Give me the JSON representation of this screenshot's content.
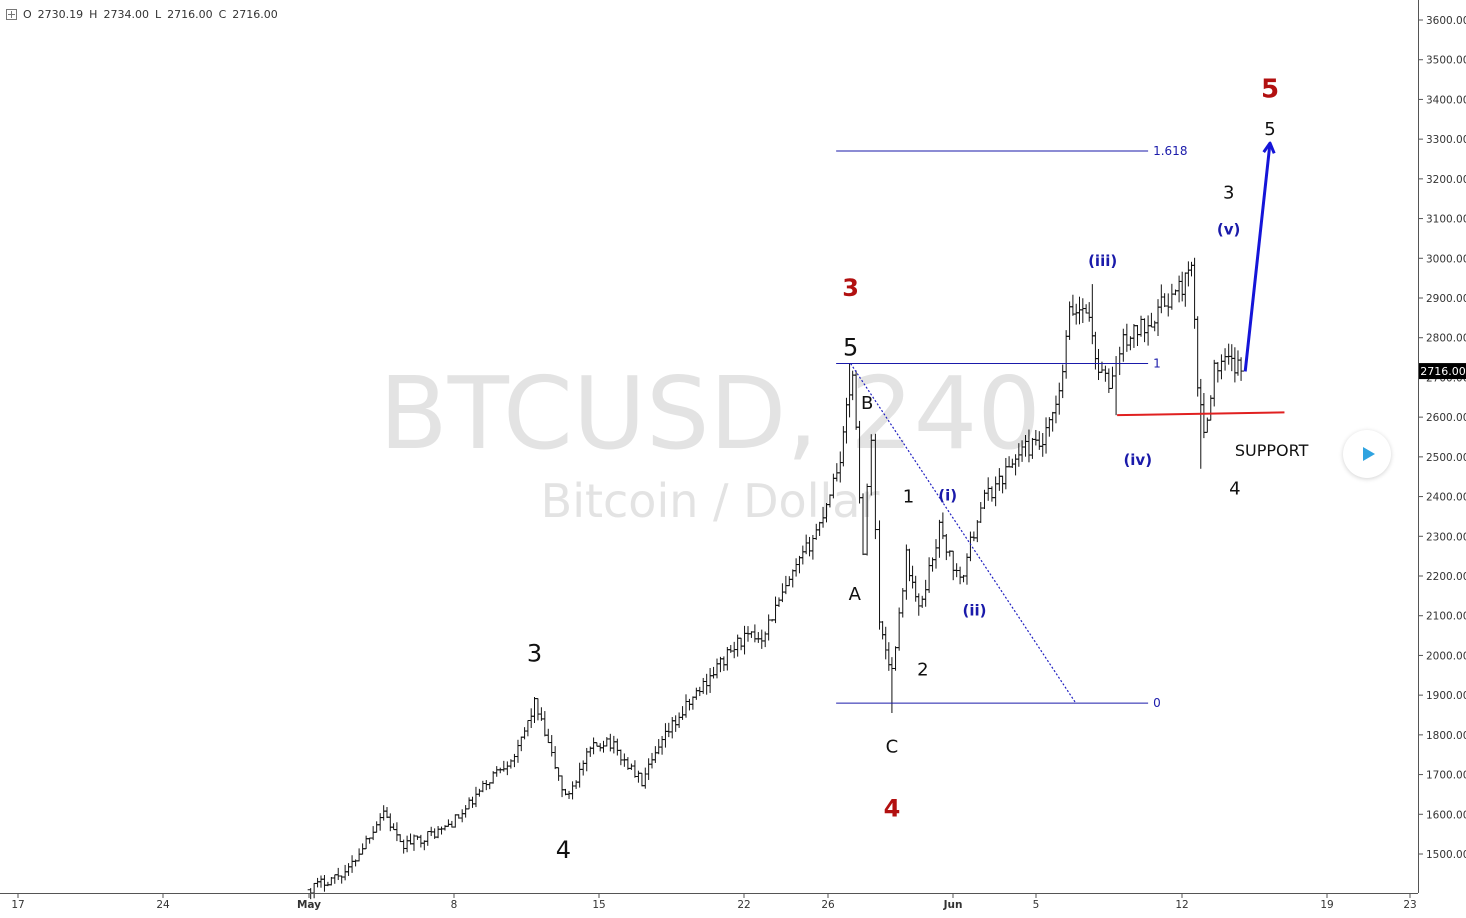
{
  "header": {
    "ohlc": {
      "o_label": "O",
      "o": "2730.19",
      "h_label": "H",
      "h": "2734.00",
      "l_label": "L",
      "l": "2716.00",
      "c_label": "C",
      "c": "2716.00"
    }
  },
  "watermark": {
    "symbol": "BTCUSD, 240",
    "description": "Bitcoin / Dollar"
  },
  "price_axis": {
    "ticks": [
      "3600.00",
      "3500.00",
      "3400.00",
      "3300.00",
      "3200.00",
      "3100.00",
      "3000.00",
      "2900.00",
      "2800.00",
      "2700.00",
      "2600.00",
      "2500.00",
      "2400.00",
      "2300.00",
      "2200.00",
      "2100.00",
      "2000.00",
      "1900.00",
      "1800.00",
      "1700.00",
      "1600.00",
      "1500.00"
    ],
    "last_price_label": "2716.00"
  },
  "time_axis": {
    "labels": [
      "17",
      "24",
      "May",
      "8",
      "15",
      "22",
      "26",
      "Jun",
      "5",
      "12",
      "19",
      "23"
    ]
  },
  "chart_data": {
    "type": "ohlc",
    "symbol": "BTCUSD",
    "interval": "240",
    "ylim": [
      1400,
      3650
    ],
    "x_unit": "days from Apr 17",
    "last_price": 2716,
    "anchors": [
      {
        "x": 14.0,
        "y": 1410
      },
      {
        "x": 16.0,
        "y": 1460
      },
      {
        "x": 17.7,
        "y": 1610
      },
      {
        "x": 18.5,
        "y": 1520
      },
      {
        "x": 20.5,
        "y": 1560
      },
      {
        "x": 21.5,
        "y": 1600
      },
      {
        "x": 23.0,
        "y": 1700
      },
      {
        "x": 24.2,
        "y": 1760
      },
      {
        "x": 25.0,
        "y": 1880
      },
      {
        "x": 26.5,
        "y": 1640
      },
      {
        "x": 27.7,
        "y": 1760
      },
      {
        "x": 28.5,
        "y": 1790
      },
      {
        "x": 30.2,
        "y": 1680
      },
      {
        "x": 31.5,
        "y": 1810
      },
      {
        "x": 33.5,
        "y": 1950
      },
      {
        "x": 35.0,
        "y": 2040
      },
      {
        "x": 36.0,
        "y": 2050
      },
      {
        "x": 37.5,
        "y": 2200
      },
      {
        "x": 38.8,
        "y": 2330
      },
      {
        "x": 39.8,
        "y": 2500
      },
      {
        "x": 40.4,
        "y": 2720
      },
      {
        "x": 40.9,
        "y": 2260
      },
      {
        "x": 41.3,
        "y": 2560
      },
      {
        "x": 41.7,
        "y": 2080
      },
      {
        "x": 42.3,
        "y": 1960
      },
      {
        "x": 43.0,
        "y": 2250
      },
      {
        "x": 43.6,
        "y": 2110
      },
      {
        "x": 44.6,
        "y": 2320
      },
      {
        "x": 45.6,
        "y": 2180
      },
      {
        "x": 46.6,
        "y": 2380
      },
      {
        "x": 47.5,
        "y": 2440
      },
      {
        "x": 48.6,
        "y": 2520
      },
      {
        "x": 49.6,
        "y": 2530
      },
      {
        "x": 50.4,
        "y": 2650
      },
      {
        "x": 50.9,
        "y": 2860
      },
      {
        "x": 51.7,
        "y": 2880
      },
      {
        "x": 52.3,
        "y": 2720
      },
      {
        "x": 52.8,
        "y": 2680
      },
      {
        "x": 53.5,
        "y": 2790
      },
      {
        "x": 54.7,
        "y": 2840
      },
      {
        "x": 55.5,
        "y": 2890
      },
      {
        "x": 56.2,
        "y": 2920
      },
      {
        "x": 56.8,
        "y": 2970
      },
      {
        "x": 57.1,
        "y": 2680
      },
      {
        "x": 57.4,
        "y": 2560
      },
      {
        "x": 57.9,
        "y": 2720
      },
      {
        "x": 58.6,
        "y": 2740
      },
      {
        "x": 59.2,
        "y": 2716
      }
    ],
    "projection": [
      {
        "x": 59.4,
        "y": 2715
      },
      {
        "x": 60.6,
        "y": 3290
      }
    ],
    "fibonacci": [
      {
        "label": "1.618",
        "value": 3270
      },
      {
        "label": "1",
        "value": 2735
      },
      {
        "label": "0",
        "value": 1880
      }
    ],
    "fib_diagonal": [
      {
        "x": 40.3,
        "y": 2735
      },
      {
        "x": 51.2,
        "y": 1880
      }
    ],
    "support": {
      "label": "SUPPORT",
      "start": [
        53.2,
        2605
      ],
      "end": [
        61.3,
        2612
      ]
    },
    "wave_labels": [
      {
        "text": "3",
        "x": 25.0,
        "y": 1985,
        "color": "#111111",
        "size": 24
      },
      {
        "text": "4",
        "x": 26.4,
        "y": 1490,
        "color": "#111111",
        "size": 24
      },
      {
        "text": "5",
        "x": 40.3,
        "y": 2755,
        "color": "#111111",
        "size": 24
      },
      {
        "text": "3",
        "x": 40.3,
        "y": 2905,
        "color": "#b21010",
        "size": 24
      },
      {
        "text": "A",
        "x": 40.5,
        "y": 2140,
        "color": "#111111",
        "size": 18
      },
      {
        "text": "B",
        "x": 41.1,
        "y": 2620,
        "color": "#111111",
        "size": 18
      },
      {
        "text": "C",
        "x": 42.3,
        "y": 1755,
        "color": "#111111",
        "size": 18
      },
      {
        "text": "4",
        "x": 42.3,
        "y": 1595,
        "color": "#b21010",
        "size": 24
      },
      {
        "text": "1",
        "x": 43.1,
        "y": 2385,
        "color": "#111111",
        "size": 18
      },
      {
        "text": "2",
        "x": 43.8,
        "y": 1950,
        "color": "#111111",
        "size": 18
      },
      {
        "text": "(i)",
        "x": 45.0,
        "y": 2390,
        "color": "#1a1aaa",
        "size": 15
      },
      {
        "text": "(ii)",
        "x": 46.3,
        "y": 2100,
        "color": "#1a1aaa",
        "size": 15
      },
      {
        "text": "(iii)",
        "x": 52.5,
        "y": 2980,
        "color": "#1a1aaa",
        "size": 15
      },
      {
        "text": "(iv)",
        "x": 54.2,
        "y": 2480,
        "color": "#1a1aaa",
        "size": 15
      },
      {
        "text": "(v)",
        "x": 58.6,
        "y": 3060,
        "color": "#1a1aaa",
        "size": 15
      },
      {
        "text": "3",
        "x": 58.6,
        "y": 3150,
        "color": "#111111",
        "size": 18
      },
      {
        "text": "4",
        "x": 58.9,
        "y": 2405,
        "color": "#111111",
        "size": 18
      },
      {
        "text": "5",
        "x": 60.6,
        "y": 3310,
        "color": "#111111",
        "size": 18
      },
      {
        "text": "5",
        "x": 60.6,
        "y": 3405,
        "color": "#b21010",
        "size": 26
      }
    ],
    "colors": {
      "bars": "#111111",
      "fib": "#1a1aaa",
      "projection": "#1515d8",
      "support": "#e02020",
      "red_wave": "#b21010",
      "blue_wave": "#1a1aaa"
    }
  }
}
